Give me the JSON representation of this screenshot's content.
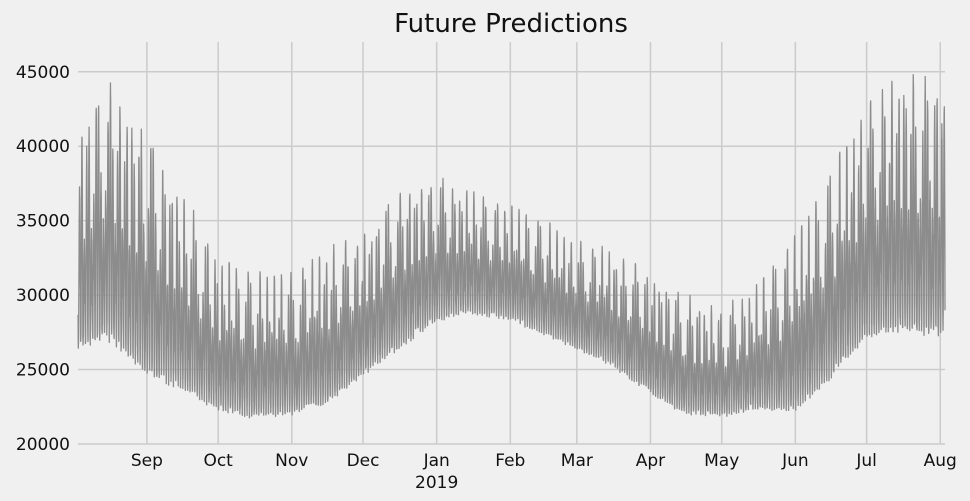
{
  "chart_data": {
    "type": "line",
    "title": "Future Predictions",
    "xlabel": "",
    "ylabel": "",
    "ylim": [
      20000,
      47000
    ],
    "xlim": [
      "2018-08-03",
      "2019-08-03"
    ],
    "yticks": [
      20000,
      25000,
      30000,
      35000,
      40000,
      45000
    ],
    "ytick_labels": [
      "20000",
      "25000",
      "30000",
      "35000",
      "40000",
      "45000"
    ],
    "xticks": [
      {
        "date": "2018-09-01",
        "label": "Sep"
      },
      {
        "date": "2018-10-01",
        "label": "Oct"
      },
      {
        "date": "2018-11-01",
        "label": "Nov"
      },
      {
        "date": "2018-12-01",
        "label": "Dec"
      },
      {
        "date": "2019-01-01",
        "label": "Jan"
      },
      {
        "date": "2019-02-01",
        "label": "Feb"
      },
      {
        "date": "2019-03-01",
        "label": "Mar"
      },
      {
        "date": "2019-04-01",
        "label": "Apr"
      },
      {
        "date": "2019-05-01",
        "label": "May"
      },
      {
        "date": "2019-06-01",
        "label": "Jun"
      },
      {
        "date": "2019-07-01",
        "label": "Jul"
      },
      {
        "date": "2019-08-01",
        "label": "Aug"
      }
    ],
    "year_label": "2019",
    "grid": true,
    "legend": "none",
    "colors": {
      "line": "#8c8c8c",
      "background": "#f0f0f0",
      "grid": "#cbcbcb"
    },
    "series": [
      {
        "frequency": "hourly",
        "envelope": {
          "x": [
            "2018-08-03",
            "2018-08-15",
            "2018-09-01",
            "2018-09-15",
            "2018-10-01",
            "2018-10-15",
            "2018-11-01",
            "2018-11-15",
            "2018-12-01",
            "2018-12-15",
            "2019-01-01",
            "2019-01-15",
            "2019-02-01",
            "2019-02-15",
            "2019-03-01",
            "2019-03-15",
            "2019-04-01",
            "2019-04-15",
            "2019-05-01",
            "2019-05-15",
            "2019-06-01",
            "2019-06-15",
            "2019-07-01",
            "2019-07-15",
            "2019-08-03"
          ],
          "low": [
            26500,
            27500,
            25000,
            24000,
            22500,
            22000,
            22200,
            22800,
            24800,
            26500,
            28500,
            29000,
            28500,
            27500,
            26500,
            25500,
            23500,
            22200,
            22000,
            22500,
            22500,
            24500,
            27500,
            28000,
            27500
          ],
          "high": [
            41000,
            44500,
            41000,
            37000,
            32500,
            31500,
            31500,
            33000,
            34000,
            37000,
            38000,
            37000,
            36000,
            35000,
            33500,
            33000,
            31500,
            30000,
            29000,
            30500,
            34000,
            38000,
            43000,
            45000,
            44500
          ]
        }
      }
    ]
  }
}
